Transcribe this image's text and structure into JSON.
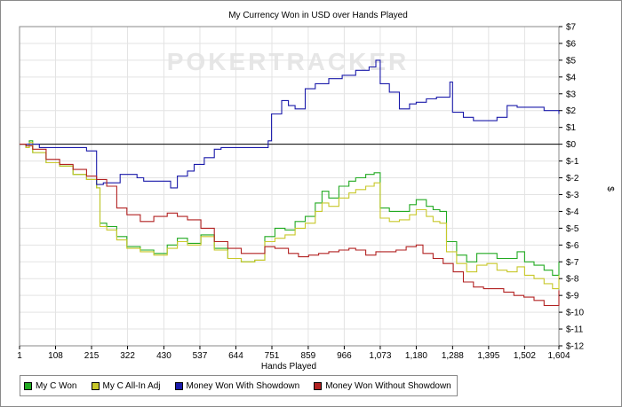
{
  "chart_data": {
    "type": "line",
    "title": "My Currency Won in USD over Hands Played",
    "watermark": "POKERTRACKER",
    "xlabel": "Hands Played",
    "ylabel": "$",
    "xlim": [
      1,
      1604
    ],
    "ylim": [
      -12,
      7
    ],
    "grid": true,
    "legend_position": "bottom",
    "x_ticks": [
      1,
      108,
      215,
      322,
      430,
      537,
      644,
      751,
      859,
      966,
      1073,
      1180,
      1288,
      1395,
      1502,
      1604
    ],
    "x_tick_labels": [
      "1",
      "108",
      "215",
      "322",
      "430",
      "537",
      "644",
      "751",
      "859",
      "966",
      "1,073",
      "1,180",
      "1,288",
      "1,395",
      "1,502",
      "1,604"
    ],
    "y_ticks": [
      7,
      6,
      5,
      4,
      3,
      2,
      1,
      0,
      -1,
      -2,
      -3,
      -4,
      -5,
      -6,
      -7,
      -8,
      -9,
      -10,
      -11,
      -12
    ],
    "y_tick_labels": [
      "$7",
      "$6",
      "$5",
      "$4",
      "$3",
      "$2",
      "$1",
      "$0",
      "$-1",
      "$-2",
      "$-3",
      "$-4",
      "$-5",
      "$-6",
      "$-7",
      "$-8",
      "$-9",
      "$-10",
      "$-11",
      "$-12"
    ],
    "series": [
      {
        "name": "My C Won",
        "color": "#22aa22",
        "points": [
          [
            1,
            0
          ],
          [
            20,
            -0.2
          ],
          [
            30,
            0.2
          ],
          [
            40,
            -0.5
          ],
          [
            80,
            -1.1
          ],
          [
            120,
            -1.3
          ],
          [
            160,
            -1.8
          ],
          [
            200,
            -2.1
          ],
          [
            230,
            -2.6
          ],
          [
            240,
            -4.7
          ],
          [
            260,
            -4.9
          ],
          [
            290,
            -5.5
          ],
          [
            320,
            -6.1
          ],
          [
            360,
            -6.3
          ],
          [
            400,
            -6.5
          ],
          [
            440,
            -6.0
          ],
          [
            470,
            -5.6
          ],
          [
            500,
            -5.9
          ],
          [
            540,
            -5.4
          ],
          [
            580,
            -6.2
          ],
          [
            620,
            -6.8
          ],
          [
            660,
            -7.0
          ],
          [
            700,
            -6.9
          ],
          [
            730,
            -5.5
          ],
          [
            760,
            -5.0
          ],
          [
            790,
            -5.1
          ],
          [
            820,
            -4.6
          ],
          [
            850,
            -4.3
          ],
          [
            880,
            -3.5
          ],
          [
            900,
            -2.8
          ],
          [
            920,
            -3.2
          ],
          [
            950,
            -2.5
          ],
          [
            980,
            -2.2
          ],
          [
            1000,
            -2.0
          ],
          [
            1030,
            -1.8
          ],
          [
            1055,
            -1.7
          ],
          [
            1073,
            -3.8
          ],
          [
            1100,
            -4.0
          ],
          [
            1130,
            -4.0
          ],
          [
            1160,
            -3.6
          ],
          [
            1180,
            -3.3
          ],
          [
            1210,
            -3.7
          ],
          [
            1230,
            -3.9
          ],
          [
            1250,
            -4.0
          ],
          [
            1270,
            -5.8
          ],
          [
            1300,
            -6.6
          ],
          [
            1330,
            -7.0
          ],
          [
            1360,
            -6.5
          ],
          [
            1390,
            -6.5
          ],
          [
            1420,
            -6.8
          ],
          [
            1450,
            -6.8
          ],
          [
            1480,
            -6.4
          ],
          [
            1502,
            -7.0
          ],
          [
            1530,
            -7.2
          ],
          [
            1560,
            -7.5
          ],
          [
            1585,
            -7.8
          ],
          [
            1604,
            -7.0
          ]
        ]
      },
      {
        "name": "My C All-In Adj",
        "color": "#c8c82a",
        "points": [
          [
            1,
            0
          ],
          [
            20,
            -0.2
          ],
          [
            30,
            0.1
          ],
          [
            40,
            -0.5
          ],
          [
            80,
            -1.1
          ],
          [
            120,
            -1.3
          ],
          [
            160,
            -1.8
          ],
          [
            200,
            -2.1
          ],
          [
            230,
            -2.6
          ],
          [
            240,
            -4.9
          ],
          [
            260,
            -5.1
          ],
          [
            290,
            -5.7
          ],
          [
            320,
            -6.2
          ],
          [
            360,
            -6.4
          ],
          [
            400,
            -6.6
          ],
          [
            440,
            -6.2
          ],
          [
            470,
            -5.8
          ],
          [
            500,
            -6.0
          ],
          [
            540,
            -5.5
          ],
          [
            580,
            -6.3
          ],
          [
            620,
            -6.8
          ],
          [
            660,
            -7.0
          ],
          [
            700,
            -6.9
          ],
          [
            730,
            -5.8
          ],
          [
            760,
            -5.6
          ],
          [
            790,
            -5.4
          ],
          [
            820,
            -5.0
          ],
          [
            850,
            -4.7
          ],
          [
            880,
            -4.0
          ],
          [
            900,
            -3.5
          ],
          [
            920,
            -3.7
          ],
          [
            950,
            -3.2
          ],
          [
            980,
            -2.9
          ],
          [
            1000,
            -2.7
          ],
          [
            1030,
            -2.5
          ],
          [
            1055,
            -2.3
          ],
          [
            1073,
            -4.4
          ],
          [
            1100,
            -4.6
          ],
          [
            1130,
            -4.5
          ],
          [
            1160,
            -4.2
          ],
          [
            1180,
            -3.9
          ],
          [
            1210,
            -4.3
          ],
          [
            1230,
            -4.6
          ],
          [
            1250,
            -4.7
          ],
          [
            1270,
            -6.4
          ],
          [
            1300,
            -7.1
          ],
          [
            1330,
            -7.6
          ],
          [
            1360,
            -7.2
          ],
          [
            1390,
            -7.1
          ],
          [
            1420,
            -7.5
          ],
          [
            1450,
            -7.6
          ],
          [
            1480,
            -7.3
          ],
          [
            1502,
            -7.8
          ],
          [
            1530,
            -8.0
          ],
          [
            1560,
            -8.3
          ],
          [
            1585,
            -8.6
          ],
          [
            1604,
            -7.8
          ]
        ]
      },
      {
        "name": "Money Won With Showdown",
        "color": "#1a1aaa",
        "points": [
          [
            1,
            0
          ],
          [
            60,
            0
          ],
          [
            60,
            -0.2
          ],
          [
            100,
            -0.2
          ],
          [
            200,
            -0.4
          ],
          [
            215,
            -0.4
          ],
          [
            230,
            -2.4
          ],
          [
            250,
            -2.3
          ],
          [
            300,
            -1.8
          ],
          [
            350,
            -2.0
          ],
          [
            370,
            -2.2
          ],
          [
            420,
            -2.2
          ],
          [
            450,
            -2.6
          ],
          [
            470,
            -1.9
          ],
          [
            500,
            -1.6
          ],
          [
            520,
            -1.2
          ],
          [
            550,
            -0.8
          ],
          [
            580,
            -0.3
          ],
          [
            600,
            -0.2
          ],
          [
            700,
            -0.2
          ],
          [
            740,
            0.2
          ],
          [
            750,
            1.8
          ],
          [
            780,
            2.6
          ],
          [
            800,
            2.3
          ],
          [
            820,
            2.1
          ],
          [
            850,
            3.3
          ],
          [
            880,
            3.6
          ],
          [
            920,
            3.9
          ],
          [
            960,
            4.1
          ],
          [
            1000,
            4.4
          ],
          [
            1040,
            4.6
          ],
          [
            1060,
            5.0
          ],
          [
            1073,
            3.6
          ],
          [
            1100,
            3.1
          ],
          [
            1130,
            2.1
          ],
          [
            1160,
            2.4
          ],
          [
            1180,
            2.5
          ],
          [
            1210,
            2.7
          ],
          [
            1240,
            2.8
          ],
          [
            1260,
            2.8
          ],
          [
            1280,
            3.7
          ],
          [
            1288,
            1.9
          ],
          [
            1320,
            1.6
          ],
          [
            1350,
            1.4
          ],
          [
            1400,
            1.4
          ],
          [
            1420,
            1.6
          ],
          [
            1450,
            2.3
          ],
          [
            1480,
            2.2
          ],
          [
            1502,
            2.2
          ],
          [
            1530,
            2.2
          ],
          [
            1560,
            2.0
          ],
          [
            1604,
            1.8
          ]
        ]
      },
      {
        "name": "Money Won Without Showdown",
        "color": "#b22222",
        "points": [
          [
            1,
            0
          ],
          [
            20,
            -0.1
          ],
          [
            40,
            -0.3
          ],
          [
            80,
            -0.9
          ],
          [
            120,
            -1.2
          ],
          [
            160,
            -1.5
          ],
          [
            200,
            -1.9
          ],
          [
            230,
            -2.1
          ],
          [
            260,
            -2.5
          ],
          [
            290,
            -3.8
          ],
          [
            320,
            -4.2
          ],
          [
            360,
            -4.6
          ],
          [
            400,
            -4.3
          ],
          [
            440,
            -4.1
          ],
          [
            470,
            -4.3
          ],
          [
            500,
            -4.5
          ],
          [
            540,
            -5.0
          ],
          [
            580,
            -5.8
          ],
          [
            620,
            -6.2
          ],
          [
            660,
            -6.5
          ],
          [
            700,
            -6.5
          ],
          [
            730,
            -6.1
          ],
          [
            760,
            -6.2
          ],
          [
            800,
            -6.5
          ],
          [
            830,
            -6.7
          ],
          [
            860,
            -6.6
          ],
          [
            890,
            -6.5
          ],
          [
            920,
            -6.4
          ],
          [
            950,
            -6.3
          ],
          [
            980,
            -6.2
          ],
          [
            1000,
            -6.3
          ],
          [
            1030,
            -6.6
          ],
          [
            1060,
            -6.4
          ],
          [
            1090,
            -6.4
          ],
          [
            1120,
            -6.3
          ],
          [
            1150,
            -6.1
          ],
          [
            1180,
            -6.0
          ],
          [
            1200,
            -6.5
          ],
          [
            1230,
            -6.8
          ],
          [
            1260,
            -7.1
          ],
          [
            1290,
            -7.6
          ],
          [
            1320,
            -8.2
          ],
          [
            1350,
            -8.5
          ],
          [
            1380,
            -8.6
          ],
          [
            1410,
            -8.6
          ],
          [
            1440,
            -8.8
          ],
          [
            1470,
            -9.0
          ],
          [
            1500,
            -9.1
          ],
          [
            1530,
            -9.3
          ],
          [
            1560,
            -9.6
          ],
          [
            1585,
            -9.6
          ],
          [
            1604,
            -8.7
          ]
        ]
      }
    ]
  }
}
